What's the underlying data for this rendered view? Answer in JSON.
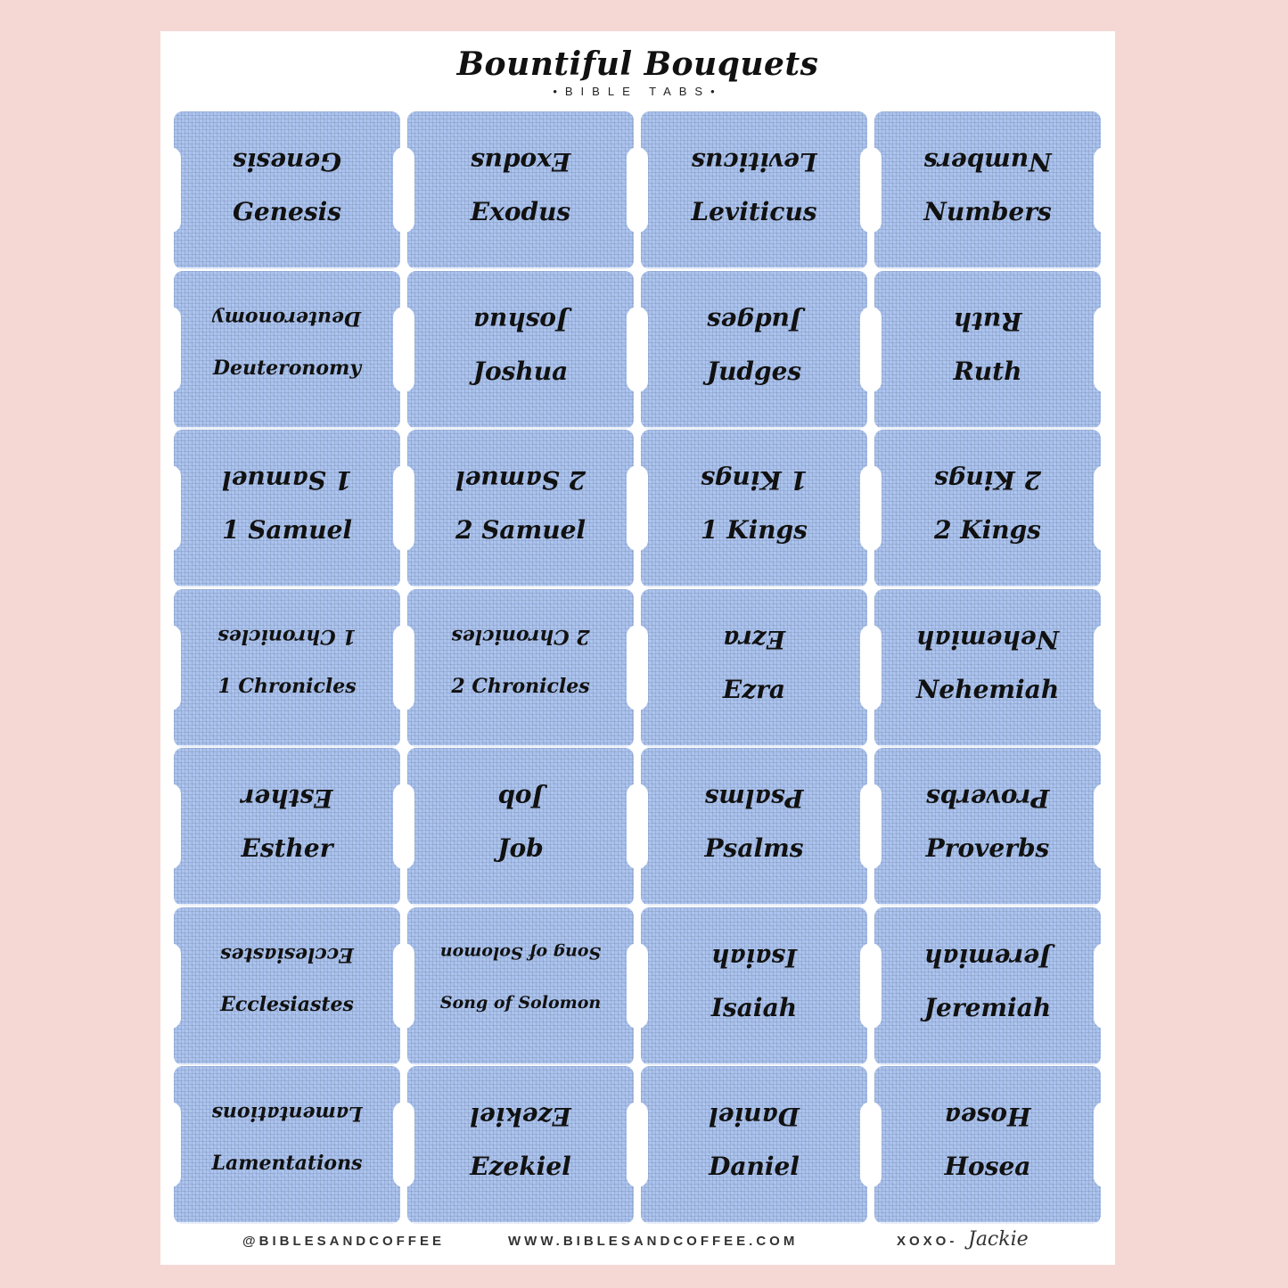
{
  "title": "Bountiful Bouquets",
  "subtitle": "•BIBLE TABS•",
  "tabs": [
    [
      "Genesis",
      "Deuteronomy",
      "1 Samuel",
      "1 Chronicles",
      "Esther",
      "Ecclesiastes",
      "Lamentations"
    ],
    [
      "Exodus",
      "Joshua",
      "2 Samuel",
      "2 Chronicles",
      "Job",
      "Song of Solomon",
      "Ezekiel"
    ],
    [
      "Leviticus",
      "Judges",
      "1 Kings",
      "Ezra",
      "Psalms",
      "Isaiah",
      "Daniel"
    ],
    [
      "Numbers",
      "Ruth",
      "2 Kings",
      "Nehemiah",
      "Proverbs",
      "Jeremiah",
      "Hosea"
    ]
  ],
  "footer": {
    "instagram": "@BIBLESANDCOFFEE",
    "website": "WWW.BIBLESANDCOFFEE.COM",
    "xoxo": "XOXO-",
    "signature": "Jackie"
  },
  "colors": {
    "background": "#f5d8d4",
    "sheet": "#ffffff",
    "tab_fill": "#a8c1ee"
  }
}
